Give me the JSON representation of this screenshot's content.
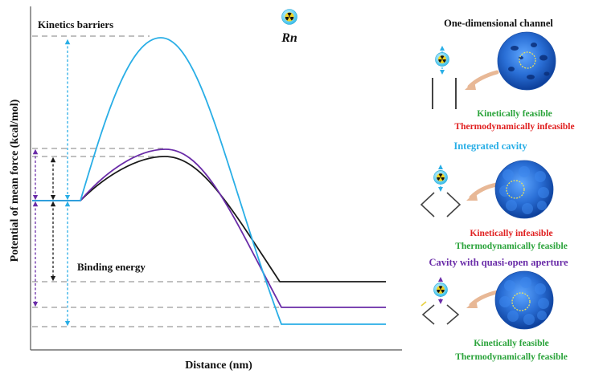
{
  "plot": {
    "ylabel": "Potential of mean force (kcal/mol)",
    "xlabel": "Distance (nm)",
    "label_kinetics": "Kinetics barriers",
    "label_binding": "Binding energy",
    "element": "Rn",
    "element_icon": "radiation-icon"
  },
  "panels": {
    "one_dim": {
      "title": "One-dimensional channel",
      "kinetic_text": "Kinetically feasible",
      "thermo_text": "Thermodynamically infeasible"
    },
    "integrated": {
      "title": "Integrated cavity",
      "kinetic_text": "Kinetically infeasible",
      "thermo_text": "Thermodynamically feasible"
    },
    "quasi_open": {
      "title": "Cavity with quasi-open aperture",
      "kinetic_text": "Kinetically feasible",
      "thermo_text": "Thermodynamically feasible"
    }
  },
  "colors": {
    "cyan": "#29aee6",
    "purple": "#6a2ca8",
    "black": "#1a1a1a",
    "feasible": "#2aa33a",
    "infeasible": "#e02020",
    "framework": "#1f63c8"
  }
}
